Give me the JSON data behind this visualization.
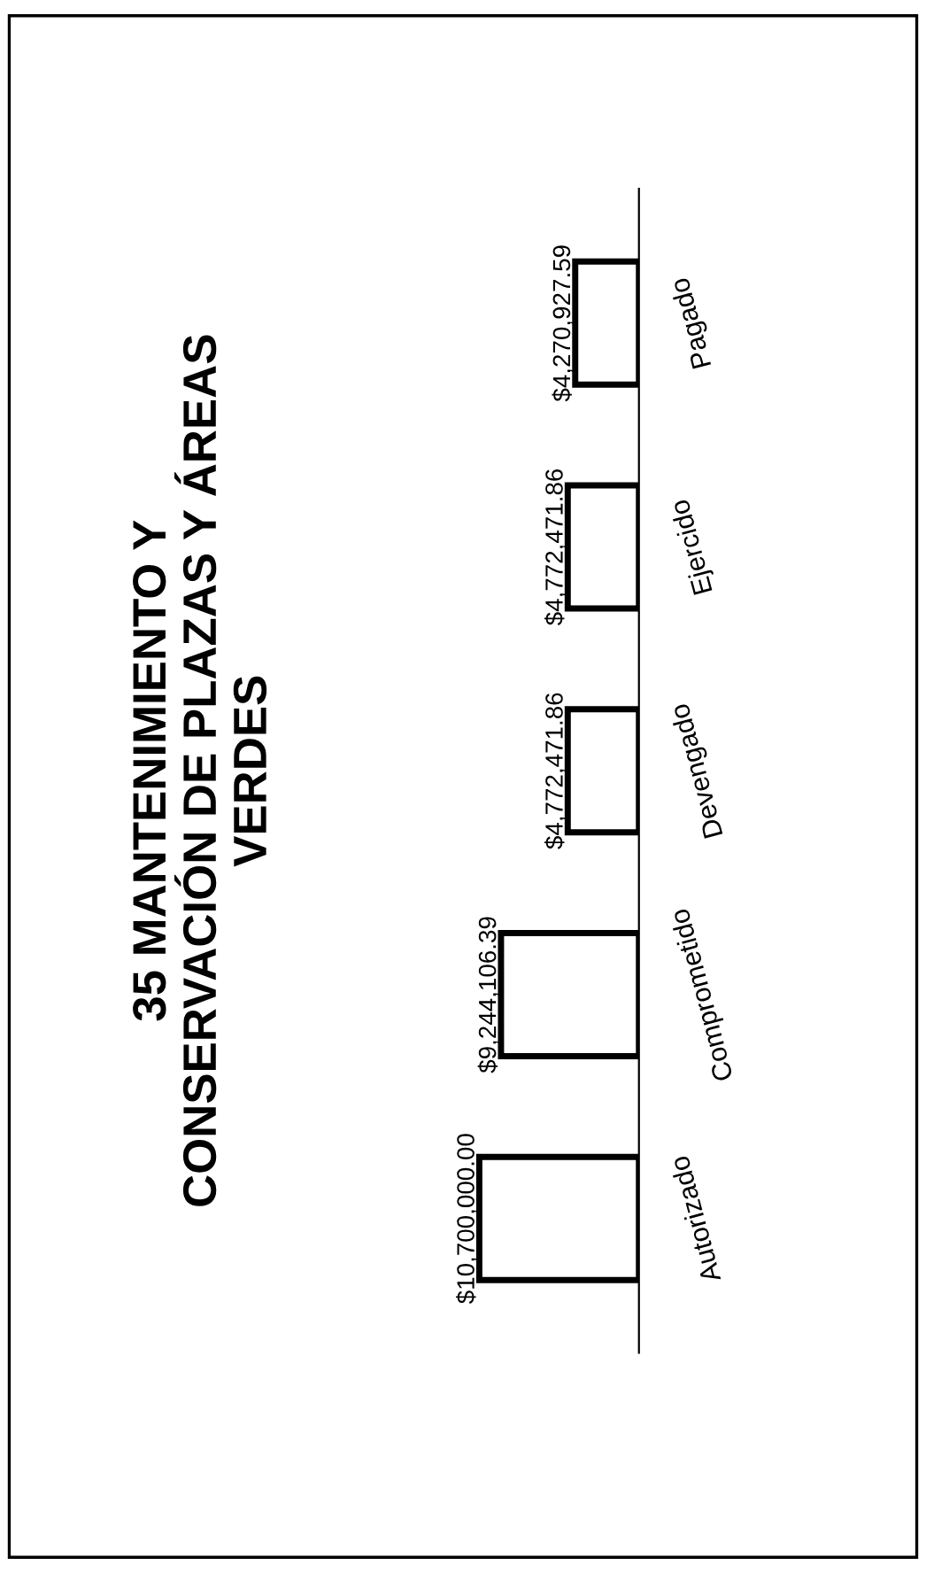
{
  "chart_data": {
    "type": "bar",
    "orientation": "horizontal",
    "title": "35 MANTENIMIENTO Y\nCONSERVACIÓN DE PLAZAS Y ÁREAS\nVERDES",
    "categories": [
      "Pagado",
      "Ejercido",
      "Devengado",
      "Comprometido",
      "Autorizado"
    ],
    "values": [
      4270927.59,
      4772471.86,
      4772471.86,
      9244106.39,
      10700000.0
    ],
    "value_labels": [
      "$4,270,927.59",
      "$4,772,471.86",
      "$4,772,471.86",
      "$9,244,106.39",
      "$10,700,000.00"
    ],
    "color": "#ffffff",
    "grid": false,
    "legend": false
  }
}
